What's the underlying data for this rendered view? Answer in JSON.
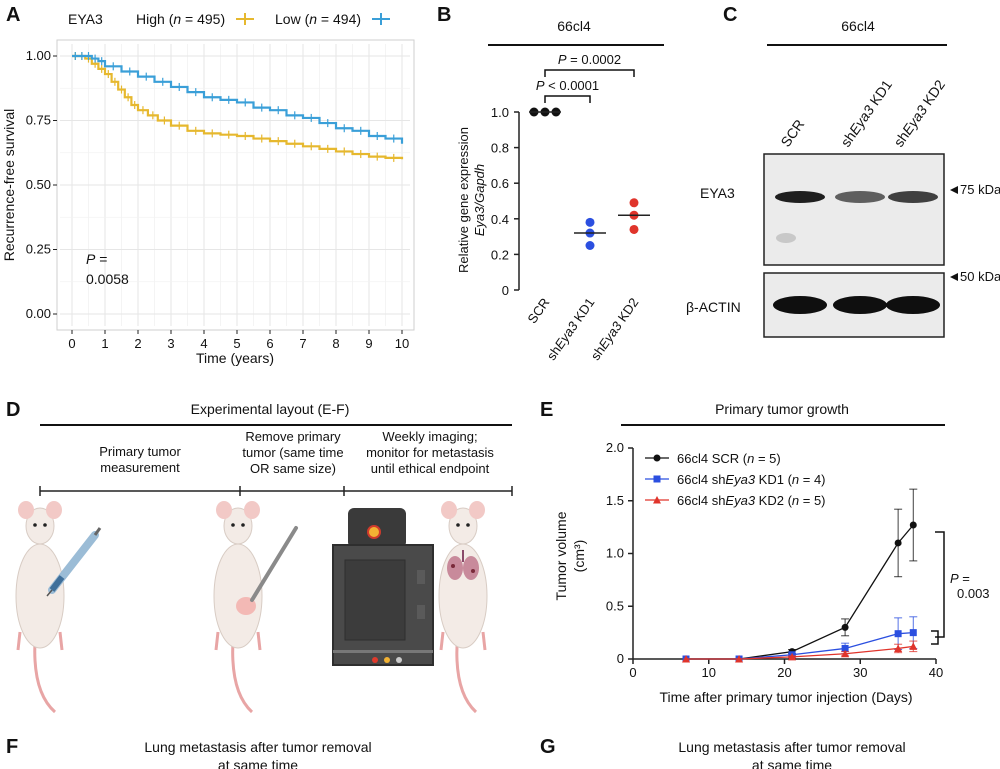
{
  "panels": {
    "a": "A",
    "b": "B",
    "c": "C",
    "d": "D",
    "e": "E",
    "f": "F",
    "g": "G"
  },
  "colors": {
    "high": "#e6b82e",
    "low": "#3a9fd8",
    "scr": "#111111",
    "kd1": "#2b4fe0",
    "kd2": "#e0342b"
  },
  "chart_data": [
    {
      "id": "A",
      "type": "line",
      "legend_title": "EYA3",
      "series": [
        {
          "name": "High",
          "n_label": "(n = 495)",
          "n_prefix": "(",
          "n_letter": "n",
          "n_rest": " = 495)",
          "x": [
            0,
            0.2,
            0.4,
            0.6,
            0.8,
            1,
            1.2,
            1.4,
            1.6,
            1.8,
            2,
            2.3,
            2.6,
            3,
            3.5,
            4,
            4.5,
            5,
            5.5,
            6,
            6.5,
            7,
            7.5,
            8,
            8.5,
            9,
            9.5,
            10
          ],
          "y": [
            1,
            1,
            0.99,
            0.97,
            0.95,
            0.93,
            0.9,
            0.87,
            0.84,
            0.81,
            0.79,
            0.77,
            0.75,
            0.73,
            0.71,
            0.7,
            0.695,
            0.69,
            0.68,
            0.67,
            0.66,
            0.65,
            0.64,
            0.63,
            0.62,
            0.61,
            0.605,
            0.6
          ]
        },
        {
          "name": "Low",
          "n_label": "(n = 494)",
          "n_prefix": "(",
          "n_letter": "n",
          "n_rest": " = 494)",
          "x": [
            0,
            0.2,
            0.4,
            0.6,
            0.8,
            1,
            1.5,
            2,
            2.5,
            3,
            3.5,
            4,
            4.5,
            5,
            5.5,
            6,
            6.5,
            7,
            7.5,
            8,
            8.5,
            9,
            9.5,
            10
          ],
          "y": [
            1,
            1,
            1,
            0.99,
            0.98,
            0.96,
            0.94,
            0.92,
            0.9,
            0.88,
            0.86,
            0.84,
            0.83,
            0.82,
            0.8,
            0.79,
            0.77,
            0.76,
            0.74,
            0.72,
            0.71,
            0.69,
            0.68,
            0.66
          ]
        }
      ],
      "xlabel": "Time (years)",
      "ylabel": "Recurrence-free survival",
      "xticks": [
        0,
        1,
        2,
        3,
        4,
        5,
        6,
        7,
        8,
        9,
        10
      ],
      "yticks": [
        "0.00",
        "0.25",
        "0.50",
        "0.75",
        "1.00"
      ],
      "xlim": [
        0,
        10
      ],
      "ylim": [
        0,
        1
      ],
      "pvalue_letter": "P",
      "pvalue_eq": " =",
      "pvalue": "0.0058"
    },
    {
      "id": "B",
      "type": "scatter",
      "title": "66cl4",
      "categories": [
        "SCR",
        "KD1",
        "KD2"
      ],
      "cat_prefix": "sh",
      "cat_gene": "Eya3",
      "points": [
        [
          1,
          1,
          1
        ],
        [
          0.38,
          0.32,
          0.25
        ],
        [
          0.49,
          0.42,
          0.34
        ]
      ],
      "means": [
        1.0,
        0.32,
        0.42
      ],
      "ylabel_1": "Relative gene expression",
      "ylabel_2": "Eya3/Gapdh",
      "yticks": [
        "0",
        "0.2",
        "0.4",
        "0.6",
        "0.8",
        "1.0"
      ],
      "ylim": [
        0,
        1
      ],
      "comparisons": [
        {
          "letter": "P",
          "text": " < 0.0001",
          "from": "SCR",
          "to": "KD1"
        },
        {
          "letter": "P",
          "text": " = 0.0002",
          "from": "SCR",
          "to": "KD2"
        }
      ]
    },
    {
      "id": "E",
      "type": "line",
      "title": "Primary tumor growth",
      "x": [
        7,
        14,
        21,
        28,
        35,
        37
      ],
      "series": [
        {
          "name": "66cl4 SCR",
          "label_pre": "66cl4 SCR",
          "label_gene": "",
          "label_post": " (",
          "label_n": "n",
          "label_end": " = 5)",
          "values": [
            0,
            0,
            0.07,
            0.3,
            1.1,
            1.27
          ],
          "err": [
            0,
            0,
            0.02,
            0.08,
            0.32,
            0.34
          ],
          "marker": "circle"
        },
        {
          "name": "66cl4 shEya3 KD1",
          "label_pre": "66cl4 sh",
          "label_gene": "Eya3",
          "label_post": " KD1 (",
          "label_n": "n",
          "label_end": " = 4)",
          "values": [
            0,
            0,
            0.04,
            0.1,
            0.24,
            0.25
          ],
          "err": [
            0,
            0,
            0.01,
            0.05,
            0.15,
            0.15
          ],
          "marker": "square"
        },
        {
          "name": "66cl4 shEya3 KD2",
          "label_pre": "66cl4 sh",
          "label_gene": "Eya3",
          "label_post": " KD2 (",
          "label_n": "n",
          "label_end": " = 5)",
          "values": [
            0,
            0,
            0.02,
            0.05,
            0.1,
            0.12
          ],
          "err": [
            0,
            0,
            0.01,
            0.02,
            0.04,
            0.05
          ],
          "marker": "triangle"
        }
      ],
      "xlabel": "Time after primary tumor injection (Days)",
      "ylabel_1": "Tumor volume",
      "ylabel_2": "(cm³)",
      "xticks": [
        "0",
        "10",
        "20",
        "30",
        "40"
      ],
      "yticks": [
        "0",
        "0.5",
        "1.0",
        "1.5",
        "2.0"
      ],
      "xlim": [
        0,
        40
      ],
      "ylim": [
        0,
        2
      ],
      "pvalue_letter": "P",
      "pvalue_eq": " =",
      "pvalue": "0.003"
    }
  ],
  "blot": {
    "title": "66cl4",
    "lanes": [
      {
        "pre": "SCR",
        "gene": "",
        "post": ""
      },
      {
        "pre": "sh",
        "gene": "Eya3",
        "post": " KD1"
      },
      {
        "pre": "sh",
        "gene": "Eya3",
        "post": " KD2"
      }
    ],
    "rows": [
      {
        "label": "EYA3",
        "intensity": [
          0.95,
          0.65,
          0.8
        ]
      },
      {
        "label": "β-ACTIN",
        "intensity": [
          1,
          1,
          1
        ]
      }
    ],
    "markers": [
      "75 kDa",
      "50 kDa"
    ]
  },
  "layout_d": {
    "title": "Experimental layout (E-F)",
    "steps": [
      {
        "l1": "Primary tumor",
        "l2": "measurement",
        "l3": ""
      },
      {
        "l1": "Remove primary",
        "l2": "tumor (same time",
        "l3": "OR same size)"
      },
      {
        "l1": "Weekly imaging;",
        "l2": "monitor for metastasis",
        "l3": "until ethical endpoint"
      }
    ]
  },
  "panel_f": {
    "l1": "Lung metastasis after tumor removal",
    "l2": "at same time"
  },
  "panel_g": {
    "l1": "Lung metastasis after tumor removal",
    "l2": "at same time"
  }
}
